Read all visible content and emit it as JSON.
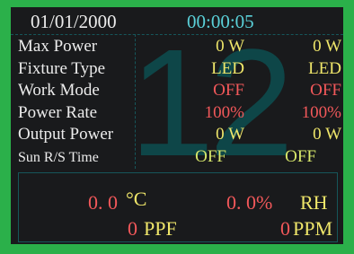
{
  "header": {
    "date": "01/01/2000",
    "time": "00:00:05"
  },
  "background_number": "12",
  "rows": [
    {
      "label": "Max Power",
      "value_1": "0 W",
      "value_2": "0 W"
    },
    {
      "label": "Fixture Type",
      "value_1": "LED",
      "value_2": "LED"
    },
    {
      "label": "Work Mode",
      "value_1": "OFF",
      "value_2": "OFF"
    },
    {
      "label": "Power Rate",
      "value_1": "100%",
      "value_2": "100%"
    },
    {
      "label": "Output Power",
      "value_1": "0 W",
      "value_2": "0 W"
    },
    {
      "label": "Sun R/S Time",
      "value_1": "OFF",
      "value_2": "OFF"
    }
  ],
  "footer": {
    "temperature": "0. 0",
    "temperature_unit": "°C",
    "humidity": "0. 0%",
    "humidity_unit": "RH",
    "ppf": "0",
    "ppf_unit": "PPF",
    "ppm": "0",
    "ppm_unit": "PPM"
  }
}
